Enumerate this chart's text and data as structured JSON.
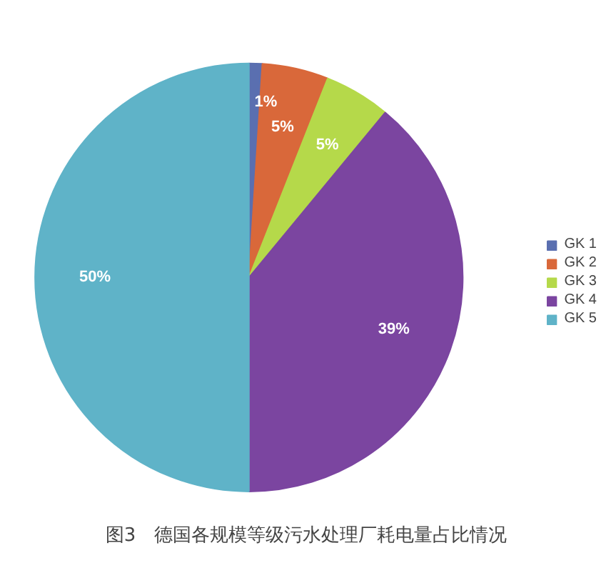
{
  "chart_data": {
    "type": "pie",
    "categories": [
      "GK 1",
      "GK 2",
      "GK 3",
      "GK 4",
      "GK 5"
    ],
    "values": [
      1,
      5,
      5,
      39,
      50
    ],
    "colors": [
      "#5a6fb0",
      "#d9683a",
      "#b5d94a",
      "#7b45a0",
      "#5fb3c8"
    ],
    "value_labels": [
      "1%",
      "5%",
      "5%",
      "39%",
      "50%"
    ],
    "legend": "right",
    "annotations": [
      "图3　德国各规模等级污水处理厂耗电量占比情况"
    ]
  }
}
